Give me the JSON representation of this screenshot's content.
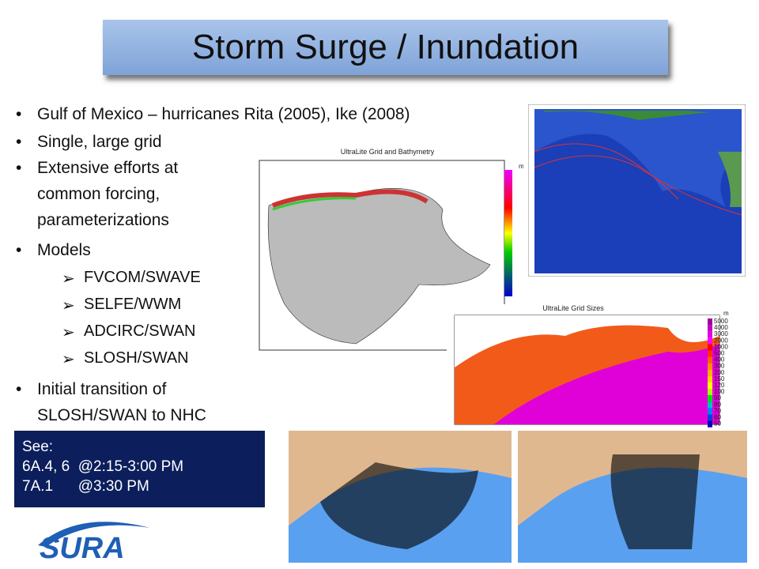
{
  "title": "Storm Surge / Inundation",
  "bullets": [
    {
      "text": "Gulf of Mexico – hurricanes Rita (2005), Ike (2008)"
    },
    {
      "text": "Single, large grid"
    },
    {
      "text": "Extensive efforts at common forcing, parameterizations"
    },
    {
      "text": "Models",
      "sub": [
        "FVCOM/SWAVE",
        "SELFE/WWM",
        "ADCIRC/SWAN",
        "SLOSH/SWAN"
      ]
    },
    {
      "text": "Initial transition of SLOSH/SWAN to NHC"
    }
  ],
  "see_box": [
    "See:",
    "6A.4, 6  @2:15-3:00 PM",
    "7A.1      @3:30 PM"
  ],
  "logo": "SURA",
  "figures": {
    "bathymetry": {
      "title": "UltraLite Grid and Bathymetry",
      "unit": "m"
    },
    "grid_sizes": {
      "title": "UltraLite Grid Sizes",
      "unit": "m",
      "scale": [
        "5000",
        "4000",
        "3000",
        "2000",
        "1000",
        "500",
        "400",
        "300",
        "200",
        "150",
        "120",
        "100",
        "90",
        "80",
        "70",
        "60",
        "50"
      ]
    }
  }
}
